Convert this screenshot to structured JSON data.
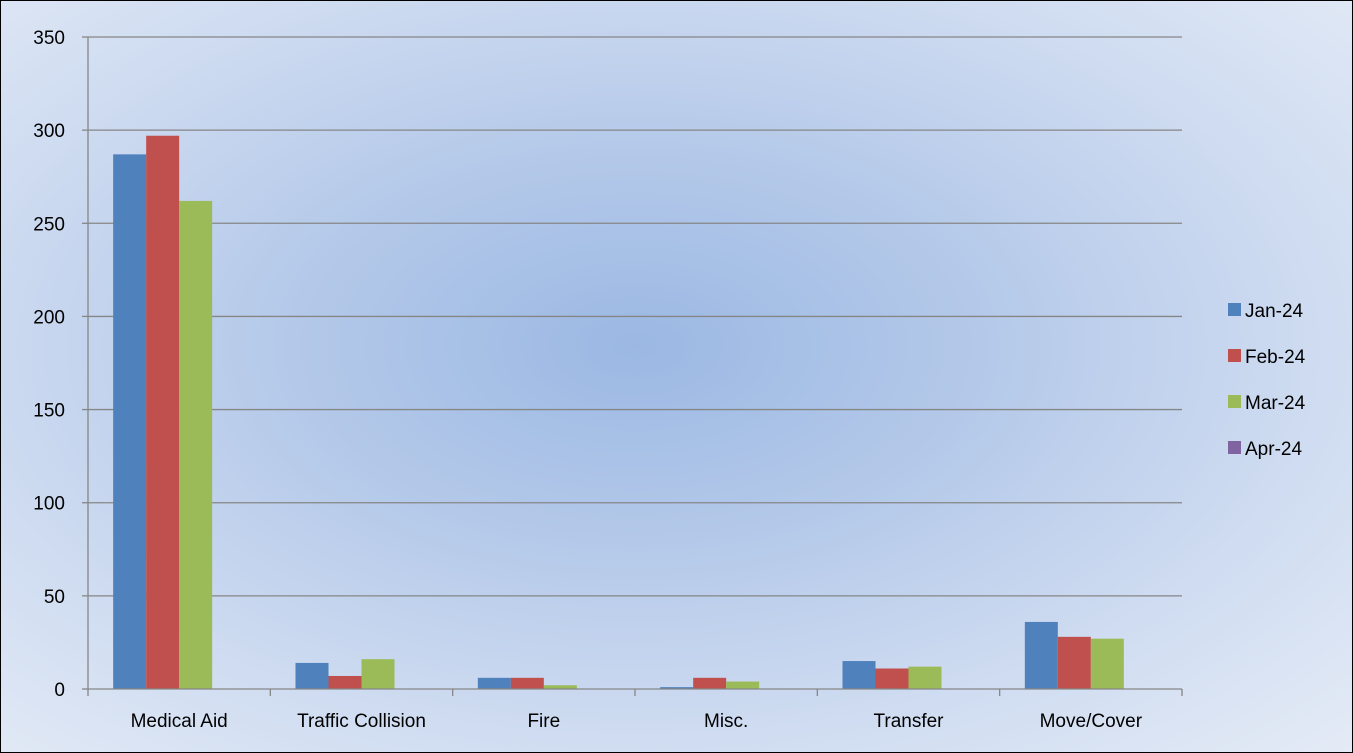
{
  "chart_data": {
    "type": "bar",
    "title": "",
    "xlabel": "",
    "ylabel": "",
    "categories": [
      "Medical Aid",
      "Traffic Collision",
      "Fire",
      "Misc.",
      "Transfer",
      "Move/Cover"
    ],
    "series": [
      {
        "name": "Jan-24",
        "color": "#4f81bd",
        "values": [
          287,
          14,
          6,
          1,
          15,
          36
        ]
      },
      {
        "name": "Feb-24",
        "color": "#c0504d",
        "values": [
          297,
          7,
          6,
          6,
          11,
          28
        ]
      },
      {
        "name": "Mar-24",
        "color": "#9bbb59",
        "values": [
          262,
          16,
          2,
          4,
          12,
          27
        ]
      },
      {
        "name": "Apr-24",
        "color": "#8064a2",
        "values": [
          0,
          0,
          0,
          0,
          0,
          0
        ]
      }
    ],
    "ylim": [
      0,
      350
    ],
    "yticks": [
      0,
      50,
      100,
      150,
      200,
      250,
      300,
      350
    ],
    "grid": true,
    "legend_position": "right"
  }
}
